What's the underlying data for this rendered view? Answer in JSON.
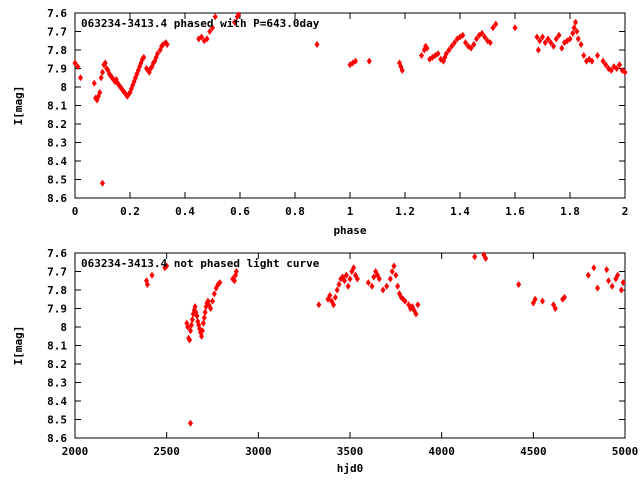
{
  "chart_data": [
    {
      "type": "scatter",
      "title": "063234-3413.4 phased with P=643.0day",
      "xlabel": "phase",
      "ylabel": "I[mag]",
      "xlim": [
        0,
        2
      ],
      "ylim": [
        7.6,
        8.6
      ],
      "y_inverted": true,
      "xticks": [
        0,
        0.2,
        0.4,
        0.6,
        0.8,
        1,
        1.2,
        1.4,
        1.6,
        1.8,
        2
      ],
      "xtick_labels": [
        "0",
        "0.2",
        "0.4",
        "0.6",
        "0.8",
        "1",
        "1.2",
        "1.4",
        "1.6",
        "1.8",
        "2"
      ],
      "yticks": [
        7.6,
        7.7,
        7.8,
        7.9,
        8.0,
        8.1,
        8.2,
        8.3,
        8.4,
        8.5,
        8.6
      ],
      "ytick_labels": [
        "7.6",
        "7.7",
        "7.8",
        "7.9",
        "8",
        "8.1",
        "8.2",
        "8.3",
        "8.4",
        "8.5",
        "8.6"
      ],
      "color": "#ff0000",
      "points": [
        [
          0.0,
          7.87
        ],
        [
          0.01,
          7.89
        ],
        [
          0.02,
          7.95
        ],
        [
          0.07,
          7.98
        ],
        [
          0.075,
          8.06
        ],
        [
          0.08,
          8.07
        ],
        [
          0.085,
          8.05
        ],
        [
          0.09,
          8.03
        ],
        [
          0.095,
          7.95
        ],
        [
          0.1,
          7.92
        ],
        [
          0.105,
          7.88
        ],
        [
          0.11,
          7.87
        ],
        [
          0.115,
          7.9
        ],
        [
          0.12,
          7.91
        ],
        [
          0.125,
          7.93
        ],
        [
          0.13,
          7.94
        ],
        [
          0.135,
          7.95
        ],
        [
          0.14,
          7.96
        ],
        [
          0.145,
          7.97
        ],
        [
          0.15,
          7.96
        ],
        [
          0.155,
          7.98
        ],
        [
          0.16,
          7.99
        ],
        [
          0.165,
          8.0
        ],
        [
          0.17,
          8.01
        ],
        [
          0.175,
          8.02
        ],
        [
          0.18,
          8.03
        ],
        [
          0.185,
          8.04
        ],
        [
          0.19,
          8.05
        ],
        [
          0.195,
          8.04
        ],
        [
          0.2,
          8.03
        ],
        [
          0.205,
          8.01
        ],
        [
          0.21,
          7.99
        ],
        [
          0.215,
          7.97
        ],
        [
          0.22,
          7.95
        ],
        [
          0.225,
          7.93
        ],
        [
          0.23,
          7.91
        ],
        [
          0.235,
          7.89
        ],
        [
          0.24,
          7.87
        ],
        [
          0.245,
          7.85
        ],
        [
          0.25,
          7.84
        ],
        [
          0.26,
          7.9
        ],
        [
          0.265,
          7.91
        ],
        [
          0.27,
          7.92
        ],
        [
          0.275,
          7.9
        ],
        [
          0.28,
          7.89
        ],
        [
          0.285,
          7.87
        ],
        [
          0.29,
          7.86
        ],
        [
          0.295,
          7.84
        ],
        [
          0.3,
          7.82
        ],
        [
          0.31,
          7.8
        ],
        [
          0.315,
          7.78
        ],
        [
          0.32,
          7.77
        ],
        [
          0.33,
          7.76
        ],
        [
          0.335,
          7.77
        ],
        [
          0.1,
          8.52
        ],
        [
          0.45,
          7.74
        ],
        [
          0.46,
          7.73
        ],
        [
          0.47,
          7.75
        ],
        [
          0.48,
          7.74
        ],
        [
          0.49,
          7.7
        ],
        [
          0.5,
          7.68
        ],
        [
          0.51,
          7.62
        ],
        [
          0.58,
          7.65
        ],
        [
          0.59,
          7.62
        ],
        [
          0.595,
          7.61
        ],
        [
          0.88,
          7.77
        ],
        [
          1.0,
          7.88
        ],
        [
          1.01,
          7.87
        ],
        [
          1.02,
          7.86
        ],
        [
          1.07,
          7.86
        ],
        [
          1.18,
          7.87
        ],
        [
          1.185,
          7.89
        ],
        [
          1.19,
          7.91
        ],
        [
          1.26,
          7.83
        ],
        [
          1.27,
          7.8
        ],
        [
          1.275,
          7.78
        ],
        [
          1.28,
          7.79
        ],
        [
          1.29,
          7.85
        ],
        [
          1.3,
          7.84
        ],
        [
          1.31,
          7.83
        ],
        [
          1.32,
          7.82
        ],
        [
          1.33,
          7.85
        ],
        [
          1.34,
          7.86
        ],
        [
          1.345,
          7.84
        ],
        [
          1.35,
          7.82
        ],
        [
          1.36,
          7.8
        ],
        [
          1.37,
          7.78
        ],
        [
          1.38,
          7.76
        ],
        [
          1.39,
          7.74
        ],
        [
          1.4,
          7.73
        ],
        [
          1.41,
          7.72
        ],
        [
          1.42,
          7.76
        ],
        [
          1.43,
          7.78
        ],
        [
          1.44,
          7.79
        ],
        [
          1.45,
          7.77
        ],
        [
          1.46,
          7.74
        ],
        [
          1.47,
          7.72
        ],
        [
          1.48,
          7.71
        ],
        [
          1.49,
          7.73
        ],
        [
          1.5,
          7.75
        ],
        [
          1.51,
          7.76
        ],
        [
          1.52,
          7.68
        ],
        [
          1.53,
          7.66
        ],
        [
          1.6,
          7.68
        ],
        [
          1.68,
          7.73
        ],
        [
          1.685,
          7.8
        ],
        [
          1.69,
          7.75
        ],
        [
          1.7,
          7.73
        ],
        [
          1.71,
          7.76
        ],
        [
          1.72,
          7.74
        ],
        [
          1.73,
          7.76
        ],
        [
          1.74,
          7.78
        ],
        [
          1.75,
          7.74
        ],
        [
          1.76,
          7.72
        ],
        [
          1.77,
          7.79
        ],
        [
          1.78,
          7.76
        ],
        [
          1.79,
          7.75
        ],
        [
          1.8,
          7.74
        ],
        [
          1.81,
          7.71
        ],
        [
          1.815,
          7.68
        ],
        [
          1.82,
          7.65
        ],
        [
          1.825,
          7.7
        ],
        [
          1.83,
          7.74
        ],
        [
          1.84,
          7.77
        ],
        [
          1.85,
          7.83
        ],
        [
          1.86,
          7.86
        ],
        [
          1.87,
          7.85
        ],
        [
          1.88,
          7.86
        ],
        [
          1.9,
          7.83
        ],
        [
          1.92,
          7.86
        ],
        [
          1.93,
          7.88
        ],
        [
          1.94,
          7.9
        ],
        [
          1.95,
          7.91
        ],
        [
          1.96,
          7.89
        ],
        [
          1.97,
          7.9
        ],
        [
          1.98,
          7.88
        ],
        [
          1.99,
          7.91
        ],
        [
          2.0,
          7.92
        ]
      ]
    },
    {
      "type": "scatter",
      "title": "063234-3413.4 not phased light curve",
      "xlabel": "hjd0",
      "ylabel": "I[mag]",
      "xlim": [
        2000,
        5000
      ],
      "ylim": [
        7.6,
        8.6
      ],
      "y_inverted": true,
      "xticks": [
        2000,
        2500,
        3000,
        3500,
        4000,
        4500,
        5000
      ],
      "xtick_labels": [
        "2000",
        "2500",
        "3000",
        "3500",
        "4000",
        "4500",
        "5000"
      ],
      "yticks": [
        7.6,
        7.7,
        7.8,
        7.9,
        8.0,
        8.1,
        8.2,
        8.3,
        8.4,
        8.5,
        8.6
      ],
      "ytick_labels": [
        "7.6",
        "7.7",
        "7.8",
        "7.9",
        "8",
        "8.1",
        "8.2",
        "8.3",
        "8.4",
        "8.5",
        "8.6"
      ],
      "color": "#ff0000",
      "points": [
        [
          2390,
          7.75
        ],
        [
          2395,
          7.77
        ],
        [
          2420,
          7.72
        ],
        [
          2490,
          7.68
        ],
        [
          2500,
          7.67
        ],
        [
          2610,
          7.98
        ],
        [
          2615,
          8.0
        ],
        [
          2620,
          8.06
        ],
        [
          2625,
          8.07
        ],
        [
          2630,
          8.02
        ],
        [
          2635,
          7.99
        ],
        [
          2640,
          7.96
        ],
        [
          2645,
          7.93
        ],
        [
          2650,
          7.91
        ],
        [
          2655,
          7.89
        ],
        [
          2660,
          7.92
        ],
        [
          2665,
          7.94
        ],
        [
          2670,
          7.97
        ],
        [
          2675,
          7.99
        ],
        [
          2680,
          8.01
        ],
        [
          2685,
          8.03
        ],
        [
          2690,
          8.05
        ],
        [
          2695,
          8.02
        ],
        [
          2700,
          7.98
        ],
        [
          2705,
          7.95
        ],
        [
          2710,
          7.92
        ],
        [
          2715,
          7.89
        ],
        [
          2720,
          7.87
        ],
        [
          2725,
          7.86
        ],
        [
          2730,
          7.88
        ],
        [
          2740,
          7.9
        ],
        [
          2750,
          7.86
        ],
        [
          2760,
          7.82
        ],
        [
          2770,
          7.79
        ],
        [
          2780,
          7.77
        ],
        [
          2790,
          7.76
        ],
        [
          2630,
          8.52
        ],
        [
          2860,
          7.74
        ],
        [
          2870,
          7.75
        ],
        [
          2875,
          7.72
        ],
        [
          2880,
          7.7
        ],
        [
          3330,
          7.88
        ],
        [
          3380,
          7.85
        ],
        [
          3390,
          7.83
        ],
        [
          3400,
          7.86
        ],
        [
          3410,
          7.88
        ],
        [
          3420,
          7.84
        ],
        [
          3430,
          7.8
        ],
        [
          3440,
          7.77
        ],
        [
          3450,
          7.74
        ],
        [
          3460,
          7.73
        ],
        [
          3470,
          7.75
        ],
        [
          3480,
          7.72
        ],
        [
          3490,
          7.78
        ],
        [
          3500,
          7.74
        ],
        [
          3510,
          7.7
        ],
        [
          3520,
          7.68
        ],
        [
          3530,
          7.72
        ],
        [
          3540,
          7.74
        ],
        [
          3600,
          7.76
        ],
        [
          3620,
          7.78
        ],
        [
          3630,
          7.73
        ],
        [
          3640,
          7.7
        ],
        [
          3650,
          7.72
        ],
        [
          3660,
          7.74
        ],
        [
          3680,
          7.8
        ],
        [
          3700,
          7.78
        ],
        [
          3720,
          7.74
        ],
        [
          3730,
          7.7
        ],
        [
          3740,
          7.67
        ],
        [
          3750,
          7.72
        ],
        [
          3760,
          7.78
        ],
        [
          3770,
          7.82
        ],
        [
          3780,
          7.84
        ],
        [
          3790,
          7.85
        ],
        [
          3800,
          7.86
        ],
        [
          3820,
          7.88
        ],
        [
          3830,
          7.9
        ],
        [
          3840,
          7.89
        ],
        [
          3850,
          7.91
        ],
        [
          3860,
          7.93
        ],
        [
          3870,
          7.88
        ],
        [
          4180,
          7.62
        ],
        [
          4230,
          7.61
        ],
        [
          4240,
          7.63
        ],
        [
          4420,
          7.77
        ],
        [
          4500,
          7.87
        ],
        [
          4510,
          7.85
        ],
        [
          4550,
          7.86
        ],
        [
          4610,
          7.88
        ],
        [
          4620,
          7.9
        ],
        [
          4660,
          7.85
        ],
        [
          4670,
          7.84
        ],
        [
          4800,
          7.72
        ],
        [
          4830,
          7.68
        ],
        [
          4850,
          7.79
        ],
        [
          4900,
          7.69
        ],
        [
          4910,
          7.75
        ],
        [
          4930,
          7.78
        ],
        [
          4950,
          7.74
        ],
        [
          4960,
          7.72
        ],
        [
          4980,
          7.8
        ],
        [
          4990,
          7.76
        ]
      ]
    }
  ]
}
